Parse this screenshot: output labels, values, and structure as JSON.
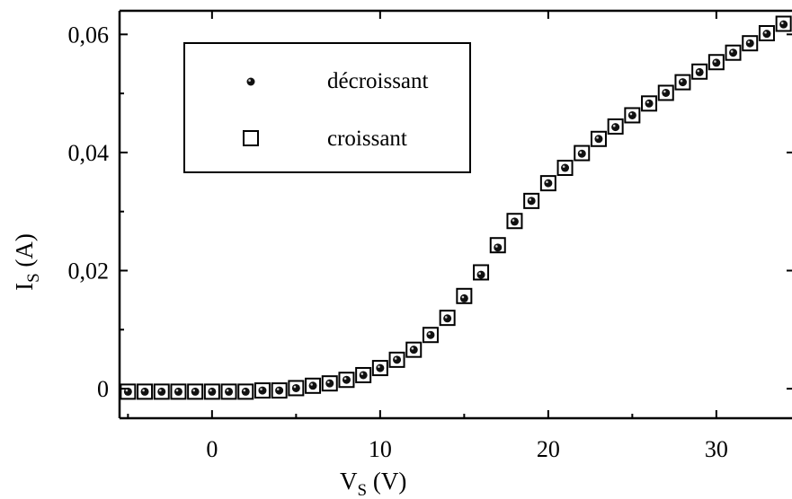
{
  "chart_data": {
    "type": "scatter",
    "title": "",
    "xlabel": {
      "main": "V",
      "sub": "S",
      "unit": " (V)"
    },
    "ylabel": {
      "main": "I",
      "sub": "S",
      "unit": " (A)"
    },
    "xlim": [
      -5.5,
      34.5
    ],
    "ylim": [
      -0.005,
      0.064
    ],
    "xticks": [
      0,
      10,
      20,
      30
    ],
    "xtick_labels": [
      "0",
      "10",
      "20",
      "30"
    ],
    "yticks": [
      0,
      0.02,
      0.04,
      0.06
    ],
    "ytick_labels": [
      "0",
      "0,02",
      "0,04",
      "0,06"
    ],
    "grid": false,
    "legend_position": "top-left",
    "series": [
      {
        "name": "décroissant",
        "marker": "filled-circle",
        "x": [
          -5,
          -4,
          -3,
          -2,
          -1,
          0,
          1,
          2,
          3,
          4,
          5,
          6,
          7,
          8,
          9,
          10,
          11,
          12,
          13,
          14,
          15,
          16,
          17,
          18,
          19,
          20,
          21,
          22,
          23,
          24,
          25,
          26,
          27,
          28,
          29,
          30,
          31,
          32,
          33,
          34
        ],
        "y": [
          -0.0005,
          -0.0005,
          -0.0005,
          -0.0005,
          -0.0005,
          -0.0005,
          -0.0005,
          -0.0005,
          -0.0003,
          -0.0003,
          0.0001,
          0.0005,
          0.0009,
          0.0015,
          0.0023,
          0.0035,
          0.0049,
          0.0066,
          0.0091,
          0.0119,
          0.0153,
          0.0193,
          0.0239,
          0.0283,
          0.0318,
          0.0348,
          0.0374,
          0.0398,
          0.0423,
          0.0443,
          0.0463,
          0.0483,
          0.0501,
          0.0519,
          0.0536,
          0.0552,
          0.0569,
          0.0585,
          0.0601,
          0.0617
        ]
      },
      {
        "name": "croissant",
        "marker": "open-square",
        "x": [
          -5,
          -4,
          -3,
          -2,
          -1,
          0,
          1,
          2,
          3,
          4,
          5,
          6,
          7,
          8,
          9,
          10,
          11,
          12,
          13,
          14,
          15,
          16,
          17,
          18,
          19,
          20,
          21,
          22,
          23,
          24,
          25,
          26,
          27,
          28,
          29,
          30,
          31,
          32,
          33,
          34
        ],
        "y": [
          -0.0005,
          -0.0005,
          -0.0005,
          -0.0005,
          -0.0005,
          -0.0005,
          -0.0005,
          -0.0005,
          -0.0003,
          -0.0003,
          0.0001,
          0.0005,
          0.0009,
          0.0015,
          0.0023,
          0.0035,
          0.0049,
          0.0066,
          0.0091,
          0.012,
          0.0157,
          0.0197,
          0.0243,
          0.0284,
          0.0318,
          0.0348,
          0.0374,
          0.0399,
          0.0423,
          0.0444,
          0.0463,
          0.0483,
          0.0501,
          0.0519,
          0.0537,
          0.0553,
          0.0569,
          0.0585,
          0.0602,
          0.0618
        ]
      }
    ]
  }
}
